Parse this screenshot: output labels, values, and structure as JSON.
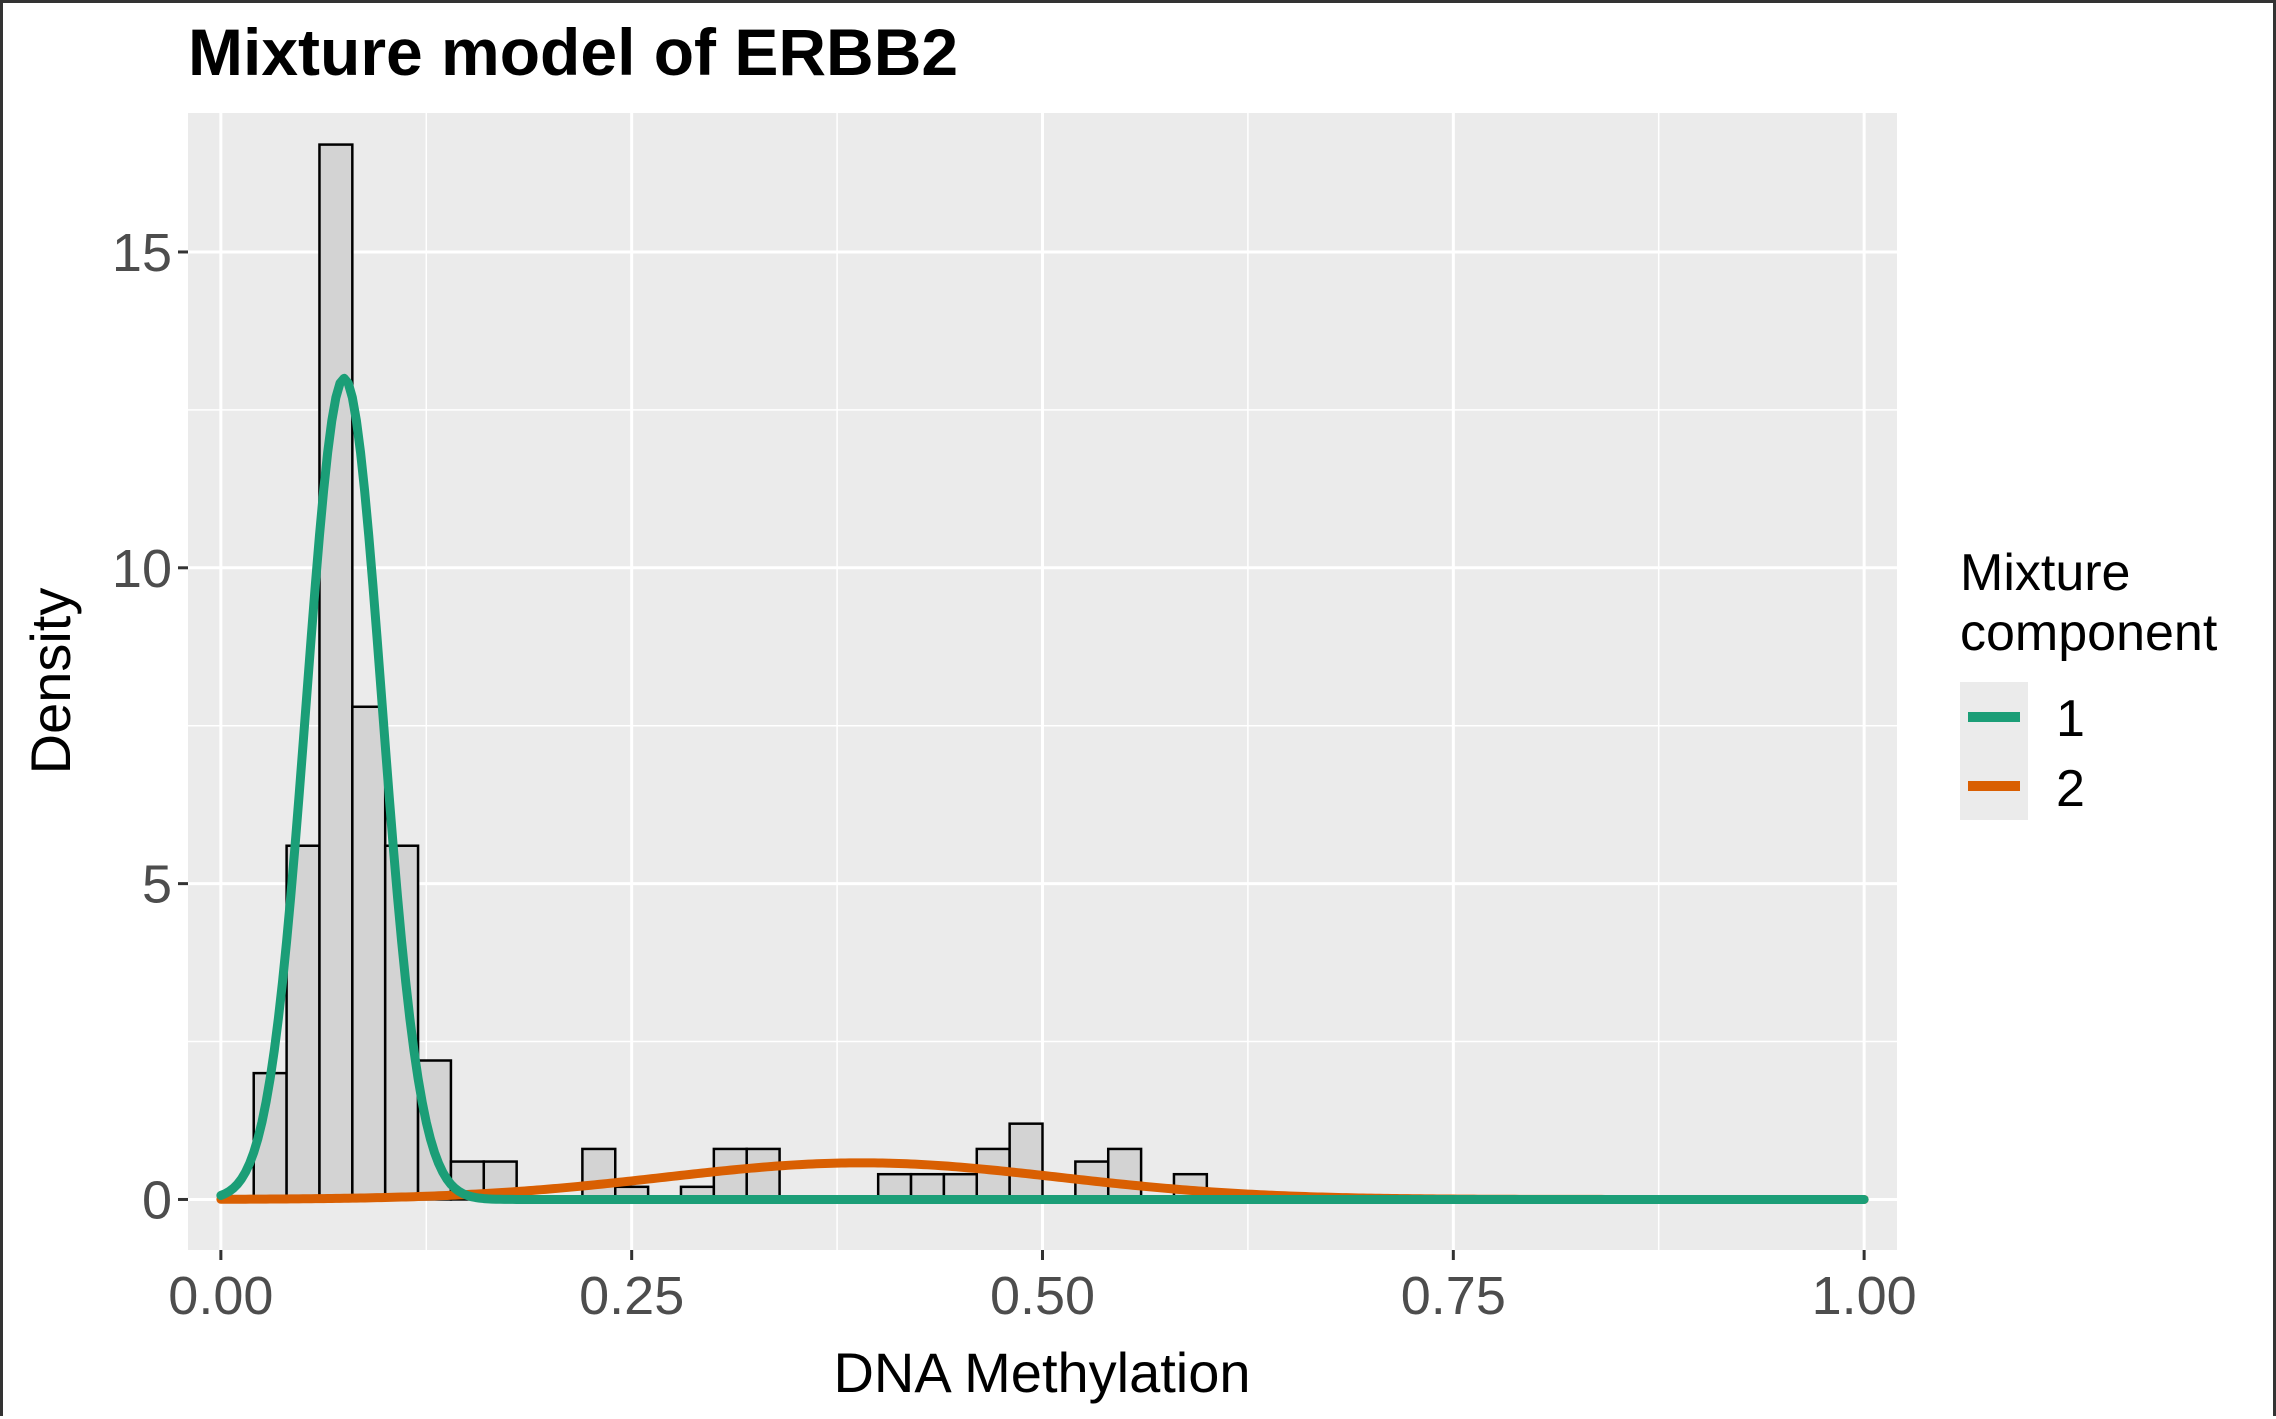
{
  "chart_data": {
    "type": "histogram",
    "title": "Mixture model of ERBB2",
    "xlabel": "DNA Methylation",
    "ylabel": "Density",
    "xlim": [
      -0.02,
      1.02
    ],
    "ylim": [
      -0.8,
      17.2
    ],
    "x_ticks": [
      0.0,
      0.25,
      0.5,
      0.75,
      1.0
    ],
    "x_tick_labels": [
      "0.00",
      "0.25",
      "0.50",
      "0.75",
      "1.00"
    ],
    "y_ticks": [
      0,
      5,
      10,
      15
    ],
    "y_tick_labels": [
      "0",
      "5",
      "10",
      "15"
    ],
    "grid": true,
    "background_color": "#ebebeb",
    "grid_color": "#ffffff",
    "bin_width": 0.02,
    "bins": [
      {
        "x_start": 0.02,
        "density": 2.0
      },
      {
        "x_start": 0.04,
        "density": 5.6
      },
      {
        "x_start": 0.06,
        "density": 16.7
      },
      {
        "x_start": 0.08,
        "density": 7.8
      },
      {
        "x_start": 0.1,
        "density": 5.6
      },
      {
        "x_start": 0.12,
        "density": 2.2
      },
      {
        "x_start": 0.14,
        "density": 0.6
      },
      {
        "x_start": 0.16,
        "density": 0.6
      },
      {
        "x_start": 0.22,
        "density": 0.8
      },
      {
        "x_start": 0.24,
        "density": 0.2
      },
      {
        "x_start": 0.28,
        "density": 0.2
      },
      {
        "x_start": 0.3,
        "density": 0.8
      },
      {
        "x_start": 0.32,
        "density": 0.8
      },
      {
        "x_start": 0.4,
        "density": 0.4
      },
      {
        "x_start": 0.42,
        "density": 0.4
      },
      {
        "x_start": 0.44,
        "density": 0.4
      },
      {
        "x_start": 0.46,
        "density": 0.8
      },
      {
        "x_start": 0.48,
        "density": 1.2
      },
      {
        "x_start": 0.52,
        "density": 0.6
      },
      {
        "x_start": 0.54,
        "density": 0.8
      },
      {
        "x_start": 0.58,
        "density": 0.4
      }
    ],
    "bar_fill": "#d3d3d3",
    "bar_stroke": "#000000",
    "series": [
      {
        "name": "1",
        "color": "#1b9e77",
        "peak_x": 0.075,
        "peak_density": 13.0,
        "sd": 0.023
      },
      {
        "name": "2",
        "color": "#d95f02",
        "peak_x": 0.39,
        "peak_density": 0.58,
        "sd": 0.12
      }
    ],
    "legend": {
      "title": "Mixture component",
      "title_lines": [
        "Mixture",
        "component"
      ],
      "placement": "right",
      "items": [
        "1",
        "2"
      ]
    }
  }
}
